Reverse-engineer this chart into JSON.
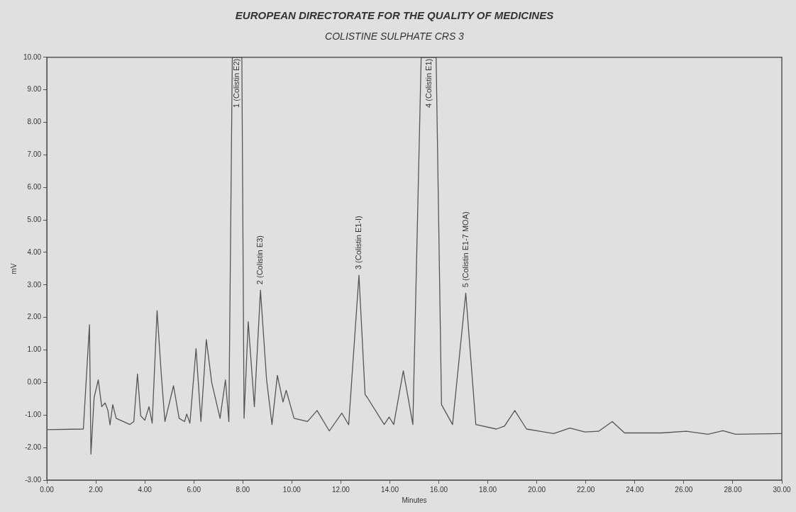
{
  "chart_data": {
    "type": "line",
    "title": "EUROPEAN DIRECTORATE FOR THE QUALITY OF MEDICINES",
    "subtitle": "COLISTINE SULPHATE CRS 3",
    "xlabel": "Minutes",
    "ylabel": "mV",
    "x": [
      0,
      1.49,
      1.74,
      1.8,
      1.93,
      2.1,
      2.24,
      2.38,
      2.49,
      2.58,
      2.69,
      2.83,
      3.39,
      3.55,
      3.7,
      3.83,
      4.0,
      4.17,
      4.3,
      4.5,
      4.67,
      4.82,
      5.17,
      5.4,
      5.62,
      5.71,
      5.84,
      6.09,
      6.29,
      6.51,
      6.73,
      7.07,
      7.29,
      7.43,
      7.57,
      7.96,
      8.05,
      8.22,
      8.47,
      8.72,
      8.97,
      9.19,
      9.41,
      9.64,
      9.77,
      10.09,
      10.64,
      11.03,
      11.53,
      12.04,
      12.32,
      12.74,
      12.99,
      13.08,
      13.77,
      13.97,
      14.16,
      14.55,
      14.94,
      15.28,
      15.89,
      16.11,
      16.56,
      17.1,
      17.51,
      18.35,
      18.68,
      19.1,
      19.58,
      20.69,
      21.35,
      21.96,
      22.52,
      23.08,
      23.58,
      25.09,
      26.1,
      26.99,
      27.6,
      28.11,
      30
    ],
    "series": [
      {
        "color": "#555555",
        "values": [
          -1.45,
          -1.43,
          1.78,
          -2.2,
          -0.46,
          0.08,
          -0.74,
          -0.63,
          -0.85,
          -1.3,
          -0.68,
          -1.1,
          -1.29,
          -1.2,
          0.26,
          -1.02,
          -1.16,
          -0.74,
          -1.25,
          2.21,
          0.26,
          -1.2,
          -0.1,
          -1.1,
          -1.2,
          -0.97,
          -1.25,
          1.04,
          -1.2,
          1.32,
          0.0,
          -1.1,
          0.08,
          -1.2,
          10,
          10,
          -1.1,
          1.87,
          -0.74,
          2.84,
          0.08,
          -1.29,
          0.22,
          -0.6,
          -0.24,
          -1.1,
          -1.2,
          -0.86,
          -1.49,
          -0.94,
          -1.3,
          3.3,
          -0.37,
          -0.46,
          -1.29,
          -1.06,
          -1.29,
          0.36,
          -1.29,
          10,
          10,
          -0.68,
          -1.29,
          2.75,
          -1.29,
          -1.43,
          -1.34,
          -0.86,
          -1.43,
          -1.57,
          -1.4,
          -1.52,
          -1.5,
          -1.2,
          -1.55,
          -1.55,
          -1.5,
          -1.59,
          -1.48,
          -1.59,
          -1.57
        ]
      }
    ],
    "xlim": [
      0,
      30
    ],
    "ylim": [
      -3,
      10
    ],
    "xticks": [
      {
        "value": 0,
        "label": "0.00"
      },
      {
        "value": 2,
        "label": "2.00"
      },
      {
        "value": 4,
        "label": "4.00"
      },
      {
        "value": 6,
        "label": "6.00"
      },
      {
        "value": 8,
        "label": "8.00"
      },
      {
        "value": 10,
        "label": "10.00"
      },
      {
        "value": 12,
        "label": "12.00"
      },
      {
        "value": 14,
        "label": "14.00"
      },
      {
        "value": 16,
        "label": "16.00"
      },
      {
        "value": 18,
        "label": "18.00"
      },
      {
        "value": 20,
        "label": "20.00"
      },
      {
        "value": 22,
        "label": "22.00"
      },
      {
        "value": 24,
        "label": "24.00"
      },
      {
        "value": 26,
        "label": "26.00"
      },
      {
        "value": 28,
        "label": "28.00"
      },
      {
        "value": 30,
        "label": "30.00"
      }
    ],
    "yticks": [
      {
        "value": -3,
        "label": "-3.00"
      },
      {
        "value": -2,
        "label": "-2.00"
      },
      {
        "value": -1,
        "label": "-1.00"
      },
      {
        "value": 0,
        "label": "0.00"
      },
      {
        "value": 1,
        "label": "1.00"
      },
      {
        "value": 2,
        "label": "2.00"
      },
      {
        "value": 3,
        "label": "3.00"
      },
      {
        "value": 4,
        "label": "4.00"
      },
      {
        "value": 5,
        "label": "5.00"
      },
      {
        "value": 6,
        "label": "6.00"
      },
      {
        "value": 7,
        "label": "7.00"
      },
      {
        "value": 8,
        "label": "8.00"
      },
      {
        "value": 9,
        "label": "9.00"
      },
      {
        "value": 10,
        "label": "10.00"
      }
    ],
    "annotations": [
      {
        "text": "1 (Colistin E2)",
        "x": 7.75,
        "y": 10
      },
      {
        "text": "2 (Colistin E3)",
        "x": 8.72,
        "y": 2.84
      },
      {
        "text": "3 (Colistin E1-I)",
        "x": 12.74,
        "y": 3.3
      },
      {
        "text": "4 (Colistin E1)",
        "x": 15.6,
        "y": 10
      },
      {
        "text": "5 (Colistin E1-7 MOA)",
        "x": 17.1,
        "y": 2.75
      }
    ],
    "grid": false,
    "legend": false,
    "marker": "none",
    "line_style": "solid"
  }
}
